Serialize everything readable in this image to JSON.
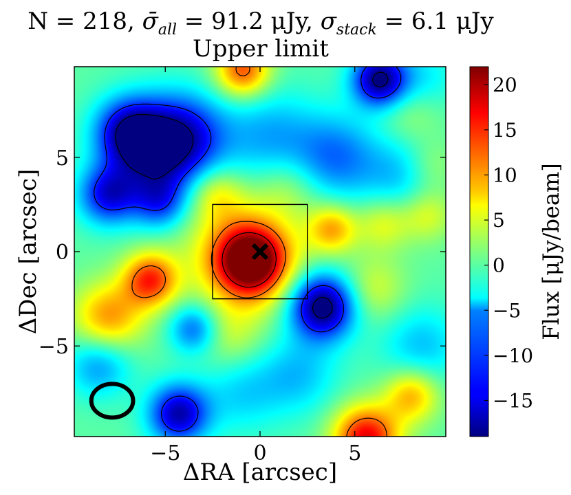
{
  "chart_data": {
    "type": "heatmap",
    "title_line1": {
      "n_part": "N = 218, ",
      "sigma_all_part": "σ̄",
      "sigma_all_sub": "all",
      "sigma_all_value": " = 91.2 μJy, ",
      "sigma_stack_part": "σ",
      "sigma_stack_sub": "stack",
      "sigma_stack_value": " = 6.1 μJy"
    },
    "title_line2": "Upper limit",
    "xlabel": "ΔRA [arcsec]",
    "ylabel": "ΔDec [arcsec]",
    "colorbar_label": "Flux [μJy/beam]",
    "xlim": [
      -9.8,
      9.8
    ],
    "ylim": [
      -9.8,
      9.8
    ],
    "xticks": [
      -5,
      0,
      5
    ],
    "xtick_labels": [
      "−5",
      "0",
      "5"
    ],
    "yticks": [
      -5,
      0,
      5
    ],
    "ytick_labels": [
      "−5",
      "0",
      "5"
    ],
    "colorbar_range": [
      -19,
      22
    ],
    "colorbar_ticks": [
      -15,
      -10,
      -5,
      0,
      5,
      10,
      15,
      20
    ],
    "colorbar_tick_labels": [
      "−15",
      "−10",
      "−5",
      "0",
      "5",
      "10",
      "15",
      "20"
    ],
    "colormap": "jet",
    "box": {
      "x": [
        -2.5,
        2.5
      ],
      "y": [
        -2.5,
        2.5
      ]
    },
    "marker": {
      "x": 0,
      "y": 0,
      "symbol": "x"
    },
    "beam": {
      "x": -7.8,
      "y": -7.9,
      "width": 2.1,
      "height": 1.7
    },
    "sources": [
      {
        "x": -0.5,
        "y": -0.5,
        "amp": 22,
        "w": 1.3
      },
      {
        "x": -0.9,
        "y": -0.1,
        "amp": 8,
        "w": 2.2
      },
      {
        "x": -5.8,
        "y": -1.5,
        "amp": 15,
        "w": 1.0
      },
      {
        "x": 5.6,
        "y": -9.9,
        "amp": 18,
        "w": 1.2
      },
      {
        "x": -0.9,
        "y": 9.6,
        "amp": 14,
        "w": 1.0
      },
      {
        "x": 3.3,
        "y": -2.9,
        "amp": -21,
        "w": 1.2
      },
      {
        "x": 6.3,
        "y": 9.1,
        "amp": -19,
        "w": 1.0
      },
      {
        "x": -4.3,
        "y": -8.6,
        "amp": -17,
        "w": 1.1
      },
      {
        "x": -5.6,
        "y": 5.3,
        "amp": -14,
        "w": 1.7
      },
      {
        "x": -4.0,
        "y": 6.1,
        "amp": -12,
        "w": 1.6
      },
      {
        "x": -7.0,
        "y": 6.4,
        "amp": -13,
        "w": 1.2
      },
      {
        "x": -8.0,
        "y": 3.0,
        "amp": -14,
        "w": 1.1
      },
      {
        "x": -5.3,
        "y": 2.6,
        "amp": -10,
        "w": 1.0
      },
      {
        "x": -3.5,
        "y": -4.1,
        "amp": -10,
        "w": 0.9
      },
      {
        "x": 4.0,
        "y": 5.0,
        "amp": -9,
        "w": 1.6
      },
      {
        "x": 0.5,
        "y": 6.0,
        "amp": -7,
        "w": 1.8
      },
      {
        "x": 7.5,
        "y": 4.0,
        "amp": -6,
        "w": 1.5
      },
      {
        "x": -8.5,
        "y": -6.0,
        "amp": -8,
        "w": 1.2
      },
      {
        "x": 2.0,
        "y": -6.5,
        "amp": -6,
        "w": 1.5
      },
      {
        "x": 8.5,
        "y": -5.0,
        "amp": -6,
        "w": 1.5
      },
      {
        "x": -1.0,
        "y": -7.5,
        "amp": -5,
        "w": 1.5
      },
      {
        "x": 8.5,
        "y": 9.0,
        "amp": -5,
        "w": 1.3
      },
      {
        "x": -8.0,
        "y": -3.5,
        "amp": 11,
        "w": 1.3
      },
      {
        "x": 3.8,
        "y": 1.2,
        "amp": 10,
        "w": 0.9
      },
      {
        "x": 8.0,
        "y": -7.6,
        "amp": 10,
        "w": 1.0
      },
      {
        "x": 8.8,
        "y": 2.0,
        "amp": 6,
        "w": 1.0
      },
      {
        "x": 6.5,
        "y": 1.5,
        "amp": 6,
        "w": 1.0
      },
      {
        "x": 9.0,
        "y": 4.5,
        "amp": 4,
        "w": 1.0
      },
      {
        "x": -2.3,
        "y": 3.1,
        "amp": 6,
        "w": 1.0
      },
      {
        "x": 6.0,
        "y": -2.0,
        "amp": 5,
        "w": 1.2
      },
      {
        "x": -1.5,
        "y": -4.5,
        "amp": 4,
        "w": 1.2
      },
      {
        "x": 1.5,
        "y": 3.5,
        "amp": 4,
        "w": 1.2
      },
      {
        "x": 8.0,
        "y": 7.5,
        "amp": 4,
        "w": 1.2
      }
    ]
  }
}
